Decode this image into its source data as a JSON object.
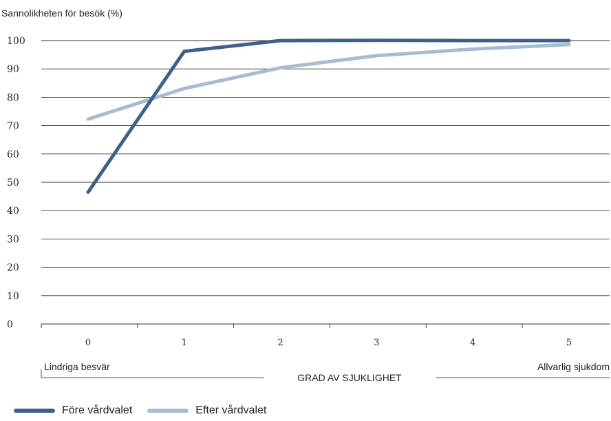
{
  "chart_data": {
    "type": "line",
    "ylabel": "Sannolikheten för besök (%)",
    "xlabel": "GRAD AV SJUKLIGHET",
    "x_left_label": "Lindriga besvär",
    "x_right_label": "Allvarlig sjukdom",
    "x": [
      0,
      1,
      2,
      3,
      4,
      5
    ],
    "x_tick_labels": [
      "0",
      "1",
      "2",
      "3",
      "4",
      "5"
    ],
    "ylim": [
      0,
      100
    ],
    "y_ticks": [
      0,
      10,
      20,
      30,
      40,
      50,
      60,
      70,
      80,
      90,
      100
    ],
    "grid": true,
    "legend_position": "bottom-left",
    "series": [
      {
        "name": "Före vårdvalet",
        "color": "#3d5f8a",
        "values": [
          46.5,
          96.2,
          100,
          100.1,
          100,
          100
        ]
      },
      {
        "name": "Efter vårdvalet",
        "color": "#a9bbd0",
        "values": [
          72.3,
          83.1,
          90.4,
          94.7,
          97.0,
          98.6
        ]
      }
    ]
  }
}
